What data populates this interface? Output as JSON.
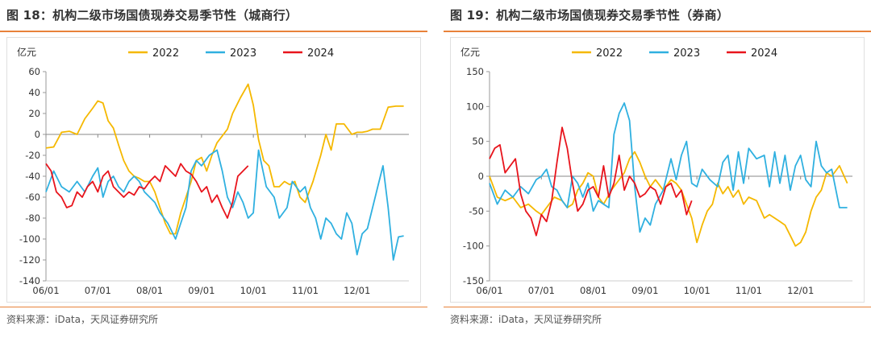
{
  "colors": {
    "2022": "#f5b800",
    "2023": "#2fb0e0",
    "2024": "#e8141c",
    "accent": "#e8823a"
  },
  "charts": [
    {
      "title": "图 18：机构二级市场国债现券交易季节性（城商行）",
      "source": "资料来源：iData，天风证券研究所",
      "chart_data": {
        "type": "line",
        "unit_label": "亿元",
        "ylim": [
          -140,
          60
        ],
        "yticks": [
          60,
          40,
          20,
          0,
          -20,
          -40,
          -60,
          -80,
          -100,
          -120,
          -140
        ],
        "xlim": [
          0,
          7
        ],
        "xticks": [
          "06/01",
          "07/01",
          "08/01",
          "09/01",
          "10/01",
          "11/01",
          "12/01"
        ],
        "legend_position": "top",
        "series": [
          {
            "name": "2022",
            "x": [
              0,
              0.15,
              0.3,
              0.45,
              0.6,
              0.75,
              0.9,
              1.0,
              1.1,
              1.2,
              1.3,
              1.4,
              1.5,
              1.6,
              1.7,
              1.8,
              1.9,
              2.0,
              2.1,
              2.2,
              2.3,
              2.4,
              2.5,
              2.6,
              2.7,
              2.8,
              2.9,
              3.0,
              3.1,
              3.2,
              3.3,
              3.5,
              3.6,
              3.75,
              3.9,
              4.0,
              4.1,
              4.2,
              4.3,
              4.4,
              4.5,
              4.6,
              4.7,
              4.8,
              4.9,
              5.0,
              5.15,
              5.3,
              5.4,
              5.5,
              5.6,
              5.75,
              5.9,
              6.0,
              6.1,
              6.2,
              6.3,
              6.45,
              6.6,
              6.75,
              6.9
            ],
            "y": [
              -13,
              -12,
              2,
              3,
              0,
              15,
              25,
              32,
              30,
              13,
              6,
              -10,
              -25,
              -35,
              -40,
              -42,
              -45,
              -45,
              -55,
              -70,
              -85,
              -95,
              -95,
              -75,
              -60,
              -45,
              -25,
              -22,
              -35,
              -20,
              -8,
              5,
              20,
              35,
              48,
              28,
              -5,
              -25,
              -30,
              -50,
              -50,
              -45,
              -48,
              -45,
              -60,
              -65,
              -45,
              -20,
              0,
              -15,
              10,
              10,
              0,
              2,
              2,
              3,
              5,
              5,
              26,
              27,
              27
            ]
          },
          {
            "name": "2023",
            "x": [
              0,
              0.15,
              0.3,
              0.45,
              0.6,
              0.75,
              0.9,
              1.0,
              1.1,
              1.2,
              1.3,
              1.4,
              1.5,
              1.6,
              1.7,
              1.8,
              1.9,
              2.0,
              2.1,
              2.2,
              2.35,
              2.5,
              2.6,
              2.7,
              2.8,
              2.9,
              3.0,
              3.15,
              3.3,
              3.4,
              3.5,
              3.6,
              3.7,
              3.8,
              3.9,
              4.0,
              4.1,
              4.25,
              4.4,
              4.5,
              4.65,
              4.75,
              4.9,
              5.0,
              5.1,
              5.2,
              5.3,
              5.4,
              5.5,
              5.6,
              5.7,
              5.8,
              5.9,
              6.0,
              6.1,
              6.2,
              6.3,
              6.4,
              6.5,
              6.6,
              6.7,
              6.8,
              6.9
            ],
            "y": [
              -55,
              -35,
              -50,
              -55,
              -45,
              -55,
              -40,
              -32,
              -60,
              -45,
              -40,
              -50,
              -55,
              -45,
              -40,
              -45,
              -55,
              -60,
              -65,
              -75,
              -85,
              -100,
              -85,
              -70,
              -35,
              -25,
              -30,
              -20,
              -15,
              -35,
              -60,
              -70,
              -55,
              -65,
              -80,
              -75,
              -15,
              -50,
              -60,
              -80,
              -70,
              -45,
              -55,
              -50,
              -70,
              -80,
              -100,
              -80,
              -85,
              -95,
              -100,
              -75,
              -85,
              -115,
              -95,
              -90,
              -70,
              -50,
              -30,
              -70,
              -120,
              -98,
              -97
            ]
          },
          {
            "name": "2024",
            "x": [
              0,
              0.1,
              0.2,
              0.3,
              0.4,
              0.5,
              0.6,
              0.7,
              0.8,
              0.9,
              1.0,
              1.1,
              1.2,
              1.3,
              1.4,
              1.5,
              1.6,
              1.7,
              1.8,
              1.9,
              2.0,
              2.1,
              2.2,
              2.3,
              2.4,
              2.5,
              2.6,
              2.7,
              2.8,
              2.9,
              3.0,
              3.1,
              3.2,
              3.3,
              3.4,
              3.5,
              3.6,
              3.7,
              3.8,
              3.9
            ],
            "y": [
              -28,
              -35,
              -55,
              -60,
              -70,
              -68,
              -55,
              -60,
              -50,
              -45,
              -55,
              -40,
              -35,
              -50,
              -55,
              -60,
              -55,
              -58,
              -50,
              -52,
              -45,
              -40,
              -45,
              -30,
              -35,
              -40,
              -28,
              -35,
              -38,
              -45,
              -55,
              -50,
              -65,
              -58,
              -70,
              -80,
              -65,
              -40,
              -35,
              -30
            ]
          }
        ]
      }
    },
    {
      "title": "图 19：机构二级市场国债现券交易季节性（券商）",
      "source": "资料来源：iData，天风证券研究所",
      "chart_data": {
        "type": "line",
        "unit_label": "亿元",
        "ylim": [
          -150,
          150
        ],
        "yticks": [
          150,
          100,
          50,
          0,
          -50,
          -100,
          -150
        ],
        "xlim": [
          0,
          7
        ],
        "xticks": [
          "06/01",
          "07/01",
          "08/01",
          "09/01",
          "10/01",
          "11/01",
          "12/01"
        ],
        "legend_position": "top",
        "series": [
          {
            "name": "2022",
            "x": [
              0,
              0.15,
              0.3,
              0.45,
              0.6,
              0.75,
              0.9,
              1.0,
              1.1,
              1.25,
              1.4,
              1.5,
              1.6,
              1.7,
              1.8,
              1.9,
              2.0,
              2.1,
              2.2,
              2.35,
              2.5,
              2.6,
              2.7,
              2.8,
              2.9,
              3.0,
              3.1,
              3.2,
              3.35,
              3.5,
              3.6,
              3.7,
              3.8,
              3.9,
              4.0,
              4.1,
              4.2,
              4.3,
              4.4,
              4.5,
              4.6,
              4.7,
              4.8,
              4.9,
              5.0,
              5.15,
              5.3,
              5.4,
              5.5,
              5.6,
              5.7,
              5.8,
              5.9,
              6.0,
              6.1,
              6.2,
              6.3,
              6.4,
              6.5,
              6.6,
              6.75,
              6.9
            ],
            "y": [
              0,
              -30,
              -35,
              -30,
              -45,
              -40,
              -50,
              -55,
              -45,
              -30,
              -35,
              -45,
              -40,
              -20,
              -10,
              5,
              0,
              -30,
              -40,
              -20,
              -5,
              5,
              25,
              35,
              20,
              0,
              -15,
              -5,
              -20,
              -5,
              -10,
              -20,
              -40,
              -60,
              -95,
              -70,
              -50,
              -40,
              -10,
              -25,
              -15,
              -30,
              -20,
              -40,
              -30,
              -35,
              -60,
              -55,
              -60,
              -65,
              -70,
              -85,
              -100,
              -95,
              -80,
              -50,
              -30,
              -20,
              5,
              0,
              15,
              -10
            ]
          },
          {
            "name": "2023",
            "x": [
              0,
              0.15,
              0.3,
              0.45,
              0.6,
              0.75,
              0.9,
              1.0,
              1.1,
              1.2,
              1.3,
              1.4,
              1.5,
              1.6,
              1.7,
              1.8,
              1.9,
              2.0,
              2.1,
              2.2,
              2.3,
              2.4,
              2.5,
              2.6,
              2.7,
              2.8,
              2.9,
              3.0,
              3.1,
              3.2,
              3.35,
              3.5,
              3.6,
              3.7,
              3.8,
              3.9,
              4.0,
              4.1,
              4.25,
              4.4,
              4.5,
              4.6,
              4.7,
              4.8,
              4.9,
              5.0,
              5.15,
              5.3,
              5.4,
              5.5,
              5.6,
              5.7,
              5.8,
              5.9,
              6.0,
              6.1,
              6.2,
              6.3,
              6.4,
              6.5,
              6.6,
              6.75,
              6.9
            ],
            "y": [
              -10,
              -40,
              -20,
              -30,
              -15,
              -25,
              -5,
              0,
              10,
              -15,
              -20,
              -35,
              -45,
              0,
              -10,
              -30,
              -10,
              -50,
              -35,
              -40,
              -45,
              60,
              90,
              105,
              80,
              -15,
              -80,
              -60,
              -70,
              -40,
              -20,
              25,
              -5,
              30,
              50,
              -10,
              -15,
              10,
              -5,
              -15,
              20,
              30,
              -20,
              35,
              -10,
              40,
              25,
              30,
              -15,
              35,
              -10,
              30,
              -20,
              15,
              30,
              -5,
              -15,
              50,
              15,
              5,
              10,
              -45,
              -45
            ]
          },
          {
            "name": "2024",
            "x": [
              0,
              0.1,
              0.2,
              0.3,
              0.4,
              0.5,
              0.6,
              0.7,
              0.8,
              0.9,
              1.0,
              1.1,
              1.2,
              1.3,
              1.4,
              1.5,
              1.6,
              1.7,
              1.8,
              1.9,
              2.0,
              2.1,
              2.2,
              2.3,
              2.4,
              2.5,
              2.6,
              2.7,
              2.8,
              2.9,
              3.0,
              3.1,
              3.2,
              3.3,
              3.4,
              3.5,
              3.6,
              3.7,
              3.8,
              3.9
            ],
            "y": [
              25,
              40,
              45,
              5,
              15,
              25,
              -25,
              -50,
              -60,
              -85,
              -55,
              -65,
              -35,
              20,
              70,
              40,
              -10,
              -50,
              -40,
              -20,
              -15,
              -30,
              15,
              -30,
              -10,
              30,
              -20,
              0,
              -10,
              -30,
              -25,
              -15,
              -20,
              -40,
              -15,
              -10,
              -30,
              -20,
              -55,
              -35
            ]
          }
        ]
      }
    }
  ]
}
